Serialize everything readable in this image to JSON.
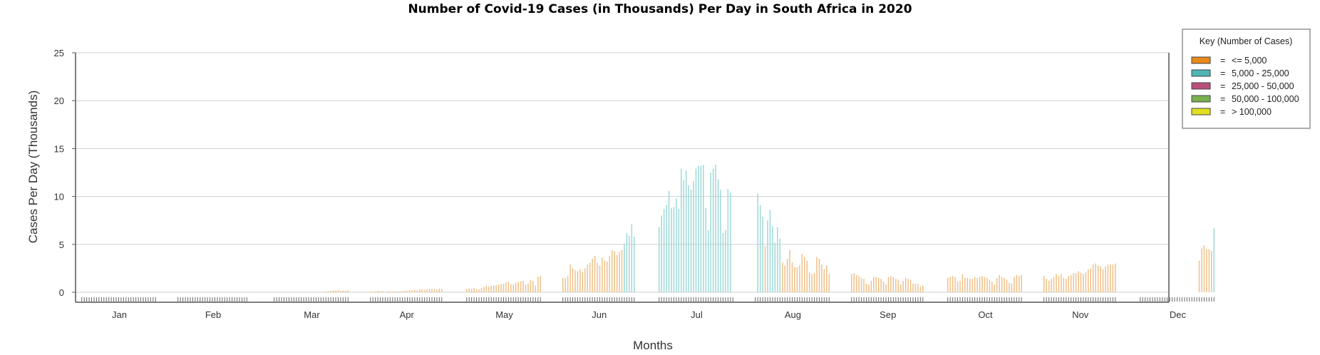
{
  "chart_data": {
    "type": "bar",
    "title": "Number of Covid-19 Cases (in Thousands) Per Day in South Africa in 2020",
    "xlabel": "Months",
    "ylabel": "Cases Per Day (Thousands)",
    "ylim": [
      0,
      25
    ],
    "yticks": [
      0,
      5,
      10,
      15,
      20,
      25
    ],
    "grid": true,
    "legend_placement": "top-right",
    "months": [
      "Jan",
      "Feb",
      "Mar",
      "Apr",
      "May",
      "Jun",
      "Jul",
      "Aug",
      "Sep",
      "Oct",
      "Nov",
      "Dec"
    ],
    "legend": {
      "title": "Key (Number of Cases)",
      "items": [
        {
          "label": "<= 5,000",
          "color": "#e8891a"
        },
        {
          "label": "5,000 - 25,000",
          "color": "#4fb5b5"
        },
        {
          "label": "25,000 - 50,000",
          "color": "#b8507a"
        },
        {
          "label": "50,000 - 100,000",
          "color": "#7ab050"
        },
        {
          "label": "> 100,000",
          "color": "#e0e020"
        }
      ]
    },
    "bar_colors": {
      "low": "#f0c088",
      "mid": "#9ed8d8"
    },
    "series": [
      {
        "month": "Jan",
        "values": [
          0,
          0,
          0,
          0,
          0,
          0,
          0,
          0,
          0,
          0,
          0,
          0,
          0,
          0,
          0,
          0,
          0,
          0,
          0,
          0,
          0,
          0,
          0,
          0,
          0,
          0,
          0,
          0,
          0,
          0,
          0
        ]
      },
      {
        "month": "Feb",
        "values": [
          0,
          0,
          0,
          0,
          0,
          0,
          0,
          0,
          0,
          0,
          0,
          0,
          0,
          0,
          0,
          0,
          0,
          0,
          0,
          0,
          0,
          0,
          0,
          0,
          0,
          0,
          0,
          0,
          0
        ]
      },
      {
        "month": "Mar",
        "values": [
          0,
          0,
          0,
          0,
          0,
          0,
          0,
          0,
          0,
          0,
          0,
          0,
          0,
          0,
          0,
          0,
          0,
          0,
          0,
          0.02,
          0.05,
          0.1,
          0.1,
          0.15,
          0.2,
          0.2,
          0.25,
          0.15,
          0.2,
          0.15,
          0.2
        ]
      },
      {
        "month": "Apr",
        "values": [
          0.1,
          0.1,
          0.1,
          0.15,
          0.1,
          0.1,
          0.05,
          0.1,
          0.1,
          0.1,
          0.1,
          0.1,
          0.1,
          0.1,
          0.15,
          0.15,
          0.2,
          0.2,
          0.25,
          0.2,
          0.3,
          0.3,
          0.25,
          0.3,
          0.35,
          0.35,
          0.3,
          0.3,
          0.35,
          0.35
        ]
      },
      {
        "month": "May",
        "values": [
          0.35,
          0.4,
          0.35,
          0.45,
          0.3,
          0.3,
          0.45,
          0.55,
          0.65,
          0.6,
          0.65,
          0.7,
          0.75,
          0.8,
          0.85,
          0.9,
          1.05,
          1.1,
          0.85,
          0.85,
          1.0,
          1.1,
          1.15,
          1.2,
          0.8,
          0.9,
          1.3,
          1.2,
          0.7,
          1.6,
          1.7
        ]
      },
      {
        "month": "Jun",
        "values": [
          1.5,
          1.5,
          1.7,
          2.9,
          2.5,
          2.3,
          2.2,
          2.4,
          2.1,
          2.5,
          2.9,
          3.1,
          3.5,
          3.8,
          3.1,
          2.8,
          3.6,
          3.3,
          3.2,
          3.8,
          4.4,
          4.3,
          3.9,
          4.2,
          4.4,
          5.1,
          6.2,
          5.9,
          7.1,
          5.8
        ]
      },
      {
        "month": "Jul",
        "values": [
          6.8,
          8.0,
          8.7,
          9.1,
          10.6,
          8.8,
          8.9,
          9.8,
          8.7,
          12.9,
          11.7,
          12.7,
          11.2,
          10.7,
          11.6,
          12.9,
          13.2,
          13.2,
          13.3,
          8.8,
          6.5,
          12.5,
          12.9,
          13.3,
          11.8,
          10.7,
          6.2,
          6.5,
          10.8,
          10.4,
          0
        ]
      },
      {
        "month": "Aug",
        "values": [
          0,
          10.3,
          9.1,
          7.9,
          4.8,
          7.5,
          8.6,
          6.9,
          5.2,
          6.8,
          5.6,
          3.1,
          2.8,
          3.5,
          4.4,
          3.1,
          2.6,
          2.6,
          2.8,
          4.0,
          3.7,
          3.3,
          2.1,
          1.9,
          2.0,
          3.7,
          3.5,
          2.9,
          2.4,
          2.8,
          1.9
        ]
      },
      {
        "month": "Sep",
        "values": [
          1.9,
          2.0,
          1.8,
          1.7,
          1.5,
          1.4,
          0.9,
          0.8,
          1.2,
          1.6,
          1.6,
          1.5,
          1.4,
          1.1,
          0.8,
          1.6,
          1.7,
          1.6,
          1.4,
          1.3,
          0.8,
          1.2,
          1.5,
          1.4,
          1.3,
          0.9,
          0.9,
          0.9,
          0.6,
          0.7
        ]
      },
      {
        "month": "Oct",
        "values": [
          1.5,
          1.6,
          1.7,
          1.6,
          1.1,
          1.2,
          1.9,
          1.5,
          1.5,
          1.4,
          1.4,
          1.6,
          1.5,
          1.6,
          1.7,
          1.6,
          1.5,
          1.3,
          1.1,
          0.8,
          1.5,
          1.8,
          1.6,
          1.5,
          1.3,
          1.0,
          0.9,
          1.6,
          1.8,
          1.7,
          1.8
        ]
      },
      {
        "month": "Nov",
        "values": [
          1.7,
          1.4,
          1.2,
          1.4,
          1.6,
          1.9,
          1.7,
          1.9,
          1.5,
          1.4,
          1.7,
          1.8,
          2.0,
          2.0,
          2.2,
          2.0,
          1.9,
          2.1,
          2.4,
          2.5,
          2.9,
          3.0,
          2.8,
          2.7,
          2.4,
          2.7,
          2.9,
          2.9,
          2.9,
          3.0
        ]
      },
      {
        "month": "Dec",
        "values": [
          0,
          0,
          0,
          0,
          0,
          0,
          0,
          0,
          0,
          0,
          0,
          0,
          0,
          0,
          0,
          0,
          0,
          0,
          0,
          0,
          0,
          0,
          0,
          0,
          3.3,
          4.6,
          4.9,
          4.5,
          4.5,
          4.3,
          6.7
        ]
      }
    ]
  }
}
